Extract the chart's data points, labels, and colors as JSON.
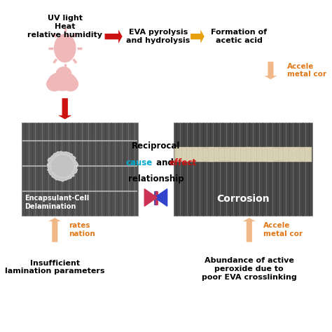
{
  "bg_color": "#ffffff",
  "sun_color": "#f0b8b8",
  "cloud_color": "#f0b8b8",
  "red_arrow_color": "#cc1111",
  "orange_arrow_color": "#e8a010",
  "light_orange_arrow_color": "#f0b888",
  "text_color_black": "#000000",
  "text_color_orange": "#e07818",
  "text_color_cyan": "#00aacc",
  "text_color_red": "#cc1111",
  "text_color_white": "#ffffff",
  "label_uv": "UV light\nHeat\nrelative humidity",
  "label_eva": "EVA pyrolysis\nand hydrolysis",
  "label_formation": "Formation of\nacetic acid",
  "label_accelerates_top": "Accele\nmetal cor",
  "label_accelerates_bot": "Accele\nmetal cor",
  "label_reciprocal": "Reciprocal",
  "label_cause": "cause",
  "label_and": " and ",
  "label_effect": "effect",
  "label_relationship": "relationship",
  "label_delamination": "Encapsulant-Cell\nDelamination",
  "label_corrosion": "Corrosion",
  "label_accelerates_del_top": "rates\nnation",
  "label_insufficient": "Insufficient\nlamination parameters",
  "label_abundance": "Abundance of active\nperoxide due to\npoor EVA crosslinking"
}
